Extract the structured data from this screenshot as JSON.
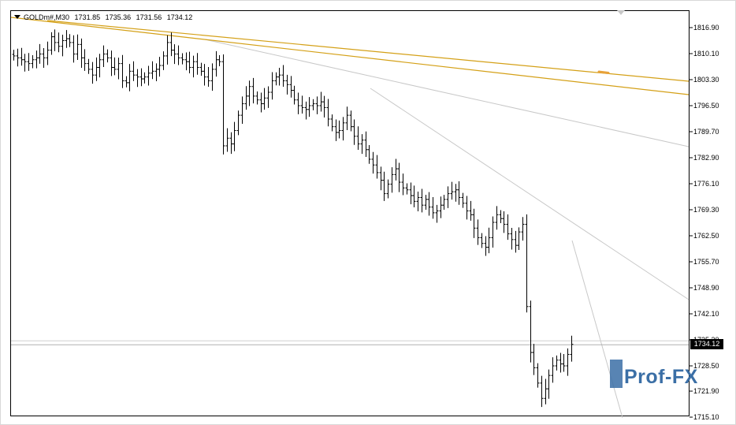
{
  "header": {
    "symbol": "GOLDm#,M30",
    "open": "1731.85",
    "high": "1735.36",
    "low": "1731.56",
    "close": "1734.12"
  },
  "current_price": "1734.12",
  "watermark": "Prof-FX",
  "colors": {
    "candles": "#000000",
    "channel": "#d4a017",
    "trendlines": "#c8c8c8",
    "price_tag_bg": "#000000",
    "watermark": "#3b6fa6"
  },
  "chart_data": {
    "type": "bar",
    "style": "ohlc",
    "ylim": [
      1715.3,
      1822.3
    ],
    "y_ticks": [
      "1816.90",
      "1810.10",
      "1803.30",
      "1796.50",
      "1789.70",
      "1782.90",
      "1776.10",
      "1769.30",
      "1762.50",
      "1755.70",
      "1748.90",
      "1742.10",
      "1735.30",
      "1728.50",
      "1721.90",
      "1715.10"
    ],
    "price_line": 1734.12,
    "grid": false,
    "close_series": [
      1809.5,
      1809.0,
      1808.5,
      1808.0,
      1807.5,
      1808.5,
      1809.0,
      1810.0,
      1809.0,
      1811.0,
      1814.5,
      1813.0,
      1812.0,
      1813.5,
      1814.0,
      1813.0,
      1810.0,
      1812.5,
      1809.0,
      1807.5,
      1806.0,
      1804.5,
      1806.5,
      1808.5,
      1810.0,
      1809.0,
      1806.5,
      1806.0,
      1807.5,
      1803.0,
      1802.5,
      1805.5,
      1804.5,
      1804.0,
      1803.5,
      1804.0,
      1805.0,
      1805.5,
      1806.0,
      1807.0,
      1809.5,
      1813.0,
      1811.0,
      1810.0,
      1809.0,
      1808.5,
      1808.0,
      1806.5,
      1808.0,
      1806.5,
      1805.5,
      1804.0,
      1803.0,
      1806.0,
      1808.5,
      1808.0,
      1786.0,
      1788.0,
      1786.5,
      1790.0,
      1794.0,
      1797.0,
      1799.0,
      1801.5,
      1799.0,
      1798.0,
      1797.0,
      1798.5,
      1800.0,
      1803.0,
      1804.0,
      1804.5,
      1803.0,
      1802.0,
      1800.5,
      1798.0,
      1796.5,
      1796.0,
      1795.5,
      1796.5,
      1797.0,
      1796.5,
      1797.5,
      1796.0,
      1793.0,
      1791.0,
      1789.5,
      1790.0,
      1792.0,
      1794.0,
      1791.0,
      1788.5,
      1786.5,
      1787.5,
      1785.0,
      1782.5,
      1781.0,
      1779.0,
      1777.0,
      1773.5,
      1776.0,
      1778.5,
      1780.0,
      1776.5,
      1775.0,
      1774.5,
      1773.0,
      1771.5,
      1772.5,
      1770.5,
      1772.0,
      1770.0,
      1768.5,
      1769.0,
      1770.5,
      1772.0,
      1773.5,
      1774.0,
      1774.5,
      1772.5,
      1771.0,
      1769.0,
      1768.0,
      1764.5,
      1762.0,
      1760.5,
      1759.5,
      1762.0,
      1766.0,
      1768.0,
      1767.0,
      1765.5,
      1763.0,
      1761.5,
      1760.0,
      1763.5,
      1765.5,
      1744.0,
      1732.0,
      1728.0,
      1724.0,
      1720.0,
      1722.5,
      1726.0,
      1728.5,
      1730.0,
      1729.0,
      1728.5,
      1731.5,
      1734.12
    ]
  }
}
